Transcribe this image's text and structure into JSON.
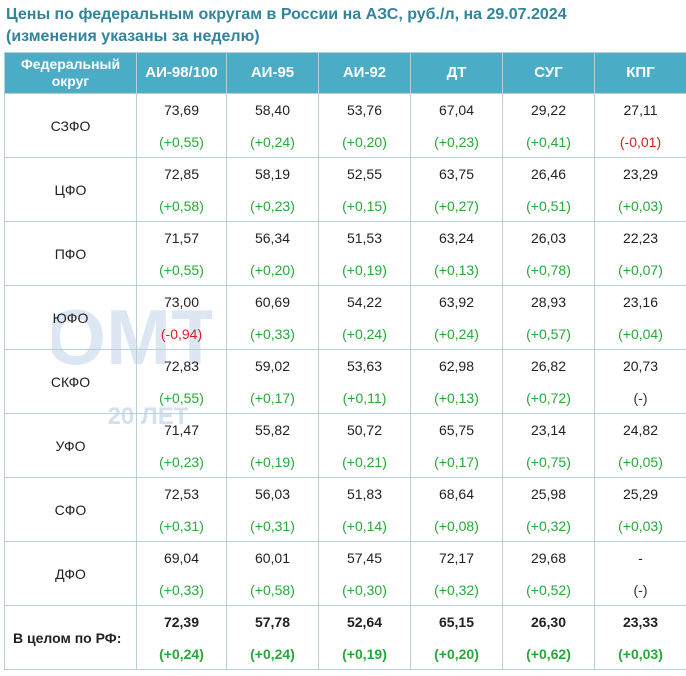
{
  "title": {
    "line1": "Цены по федеральным округам в России на АЗС, руб./л, на 29.07.2024",
    "line2": "(изменения указаны за неделю)"
  },
  "watermark": {
    "logo_text": "ОМТ",
    "caption": "20 ЛЕТ"
  },
  "colors": {
    "title": "#31849b",
    "header_bg": "#4bacc6",
    "header_text": "#ffffff",
    "border": "#b8cfd6",
    "positive": "#27a83a",
    "negative": "#d42020",
    "total_bg": "#daeef3"
  },
  "chart_data": {
    "type": "table",
    "title": "Цены по федеральным округам в России на АЗС, руб./л, на 29.07.2024",
    "subtitle": "(изменения указаны за неделю)",
    "row_header": "Федеральный округ",
    "columns": [
      "АИ-98/100",
      "АИ-95",
      "АИ-92",
      "ДТ",
      "СУГ",
      "КПГ"
    ],
    "rows": [
      {
        "region": "СЗФО",
        "cells": [
          {
            "price": "73,69",
            "change": "(+0,55)"
          },
          {
            "price": "58,40",
            "change": "(+0,24)"
          },
          {
            "price": "53,76",
            "change": "(+0,20)"
          },
          {
            "price": "67,04",
            "change": "(+0,23)"
          },
          {
            "price": "29,22",
            "change": "(+0,41)"
          },
          {
            "price": "27,11",
            "change": "(-0,01)"
          }
        ]
      },
      {
        "region": "ЦФО",
        "cells": [
          {
            "price": "72,85",
            "change": "(+0,58)"
          },
          {
            "price": "58,19",
            "change": "(+0,23)"
          },
          {
            "price": "52,55",
            "change": "(+0,15)"
          },
          {
            "price": "63,75",
            "change": "(+0,27)"
          },
          {
            "price": "26,46",
            "change": "(+0,51)"
          },
          {
            "price": "23,29",
            "change": "(+0,03)"
          }
        ]
      },
      {
        "region": "ПФО",
        "cells": [
          {
            "price": "71,57",
            "change": "(+0,55)"
          },
          {
            "price": "56,34",
            "change": "(+0,20)"
          },
          {
            "price": "51,53",
            "change": "(+0,19)"
          },
          {
            "price": "63,24",
            "change": "(+0,13)"
          },
          {
            "price": "26,03",
            "change": "(+0,78)"
          },
          {
            "price": "22,23",
            "change": "(+0,07)"
          }
        ]
      },
      {
        "region": "ЮФО",
        "cells": [
          {
            "price": "73,00",
            "change": "(-0,94)"
          },
          {
            "price": "60,69",
            "change": "(+0,33)"
          },
          {
            "price": "54,22",
            "change": "(+0,24)"
          },
          {
            "price": "63,92",
            "change": "(+0,24)"
          },
          {
            "price": "28,93",
            "change": "(+0,57)"
          },
          {
            "price": "23,16",
            "change": "(+0,04)"
          }
        ]
      },
      {
        "region": "СКФО",
        "cells": [
          {
            "price": "72,83",
            "change": "(+0,55)"
          },
          {
            "price": "59,02",
            "change": "(+0,17)"
          },
          {
            "price": "53,63",
            "change": "(+0,11)"
          },
          {
            "price": "62,98",
            "change": "(+0,13)"
          },
          {
            "price": "26,82",
            "change": "(+0,72)"
          },
          {
            "price": "20,73",
            "change": "(-)"
          }
        ]
      },
      {
        "region": "УФО",
        "cells": [
          {
            "price": "71,47",
            "change": "(+0,23)"
          },
          {
            "price": "55,82",
            "change": "(+0,19)"
          },
          {
            "price": "50,72",
            "change": "(+0,21)"
          },
          {
            "price": "65,75",
            "change": "(+0,17)"
          },
          {
            "price": "23,14",
            "change": "(+0,75)"
          },
          {
            "price": "24,82",
            "change": "(+0,05)"
          }
        ]
      },
      {
        "region": "СФО",
        "cells": [
          {
            "price": "72,53",
            "change": "(+0,31)"
          },
          {
            "price": "56,03",
            "change": "(+0,31)"
          },
          {
            "price": "51,83",
            "change": "(+0,14)"
          },
          {
            "price": "68,64",
            "change": "(+0,08)"
          },
          {
            "price": "25,98",
            "change": "(+0,32)"
          },
          {
            "price": "25,29",
            "change": "(+0,03)"
          }
        ]
      },
      {
        "region": "ДФО",
        "cells": [
          {
            "price": "69,04",
            "change": "(+0,33)"
          },
          {
            "price": "60,01",
            "change": "(+0,58)"
          },
          {
            "price": "57,45",
            "change": "(+0,30)"
          },
          {
            "price": "72,17",
            "change": "(+0,32)"
          },
          {
            "price": "29,68",
            "change": "(+0,52)"
          },
          {
            "price": "-",
            "change": "(-)"
          }
        ]
      }
    ],
    "total": {
      "region": "В целом по РФ:",
      "cells": [
        {
          "price": "72,39",
          "change": "(+0,24)"
        },
        {
          "price": "57,78",
          "change": "(+0,24)"
        },
        {
          "price": "52,64",
          "change": "(+0,19)"
        },
        {
          "price": "65,15",
          "change": "(+0,20)"
        },
        {
          "price": "26,30",
          "change": "(+0,62)"
        },
        {
          "price": "23,33",
          "change": "(+0,03)"
        }
      ]
    }
  }
}
